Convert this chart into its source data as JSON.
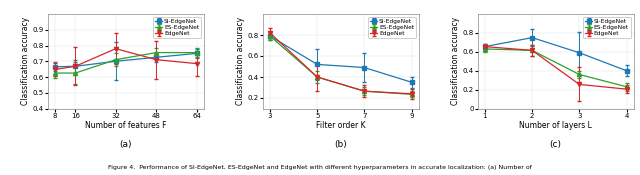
{
  "subplot_a": {
    "xlabel": "Number of features F",
    "ylabel": "Classification accuracy",
    "title": "(a)",
    "xticks": [
      8,
      16,
      32,
      48,
      64
    ],
    "ylim": [
      0.4,
      1.0
    ],
    "yticks": [
      0.4,
      0.5,
      0.6,
      0.7,
      0.8,
      0.9
    ],
    "SI": {
      "x": [
        8,
        16,
        32,
        48,
        64
      ],
      "y": [
        0.665,
        0.668,
        0.7,
        0.725,
        0.75
      ],
      "yerr": [
        0.03,
        0.04,
        0.12,
        0.03,
        0.03
      ]
    },
    "ES": {
      "x": [
        8,
        16,
        32,
        48,
        64
      ],
      "y": [
        0.625,
        0.625,
        0.71,
        0.755,
        0.755
      ],
      "yerr": [
        0.03,
        0.07,
        0.04,
        0.03,
        0.03
      ]
    },
    "Edge": {
      "x": [
        8,
        16,
        32,
        48,
        64
      ],
      "y": [
        0.648,
        0.668,
        0.78,
        0.71,
        0.685
      ],
      "yerr": [
        0.04,
        0.12,
        0.1,
        0.12,
        0.08
      ]
    }
  },
  "subplot_b": {
    "xlabel": "Filter order K",
    "ylabel": "Classification accuracy",
    "title": "(b)",
    "xticks": [
      3,
      5,
      7,
      9
    ],
    "ylim": [
      0.1,
      1.0
    ],
    "yticks": [
      0.2,
      0.4,
      0.6,
      0.8
    ],
    "SI": {
      "x": [
        3,
        5,
        7,
        9
      ],
      "y": [
        0.79,
        0.52,
        0.49,
        0.35
      ],
      "yerr": [
        0.04,
        0.15,
        0.14,
        0.05
      ]
    },
    "ES": {
      "x": [
        3,
        5,
        7,
        9
      ],
      "y": [
        0.79,
        0.4,
        0.265,
        0.235
      ],
      "yerr": [
        0.04,
        0.06,
        0.04,
        0.03
      ]
    },
    "Edge": {
      "x": [
        3,
        5,
        7,
        9
      ],
      "y": [
        0.82,
        0.4,
        0.265,
        0.24
      ],
      "yerr": [
        0.05,
        0.13,
        0.06,
        0.05
      ]
    }
  },
  "subplot_c": {
    "xlabel": "Number of layers L",
    "ylabel": "Classification accuracy",
    "title": "(c)",
    "xticks": [
      1,
      2,
      3,
      4
    ],
    "ylim": [
      0.0,
      1.0
    ],
    "yticks": [
      0.0,
      0.2,
      0.4,
      0.6,
      0.8
    ],
    "SI": {
      "x": [
        1,
        2,
        3,
        4
      ],
      "y": [
        0.655,
        0.75,
        0.59,
        0.4
      ],
      "yerr": [
        0.03,
        0.09,
        0.22,
        0.06
      ]
    },
    "ES": {
      "x": [
        1,
        2,
        3,
        4
      ],
      "y": [
        0.63,
        0.615,
        0.36,
        0.23
      ],
      "yerr": [
        0.03,
        0.06,
        0.04,
        0.04
      ]
    },
    "Edge": {
      "x": [
        1,
        2,
        3,
        4
      ],
      "y": [
        0.655,
        0.615,
        0.255,
        0.205
      ],
      "yerr": [
        0.03,
        0.06,
        0.18,
        0.04
      ]
    }
  },
  "colors": {
    "SI": "#1f77b4",
    "ES": "#2ca02c",
    "Edge": "#d62728"
  },
  "markers": {
    "SI": "s",
    "ES": "^",
    "Edge": "v"
  },
  "legend_labels": {
    "SI": "SI-EdgeNet",
    "ES": "ES-EdgeNet",
    "Edge": "EdgeNet"
  },
  "caption": "Figure 4.  Performance of SI-EdgeNet, ES-EdgeNet and EdgeNet with different hyperparameters in accurate localization: (a) Number of"
}
